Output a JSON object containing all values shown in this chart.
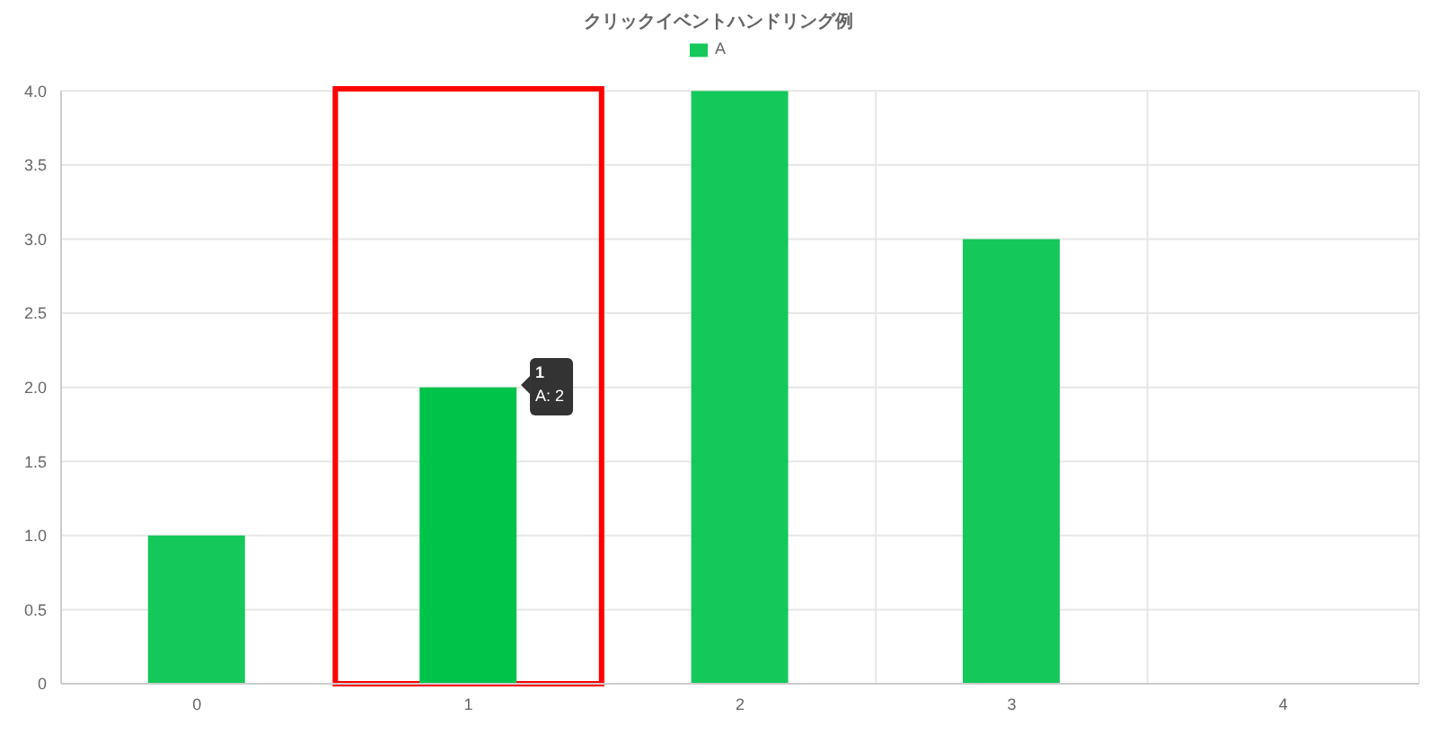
{
  "chart_data": {
    "type": "bar",
    "title": "クリックイベントハンドリング例",
    "categories": [
      "0",
      "1",
      "2",
      "3",
      "4"
    ],
    "series": [
      {
        "name": "A",
        "color": "#14c85a",
        "colors": [
          "#14c85a",
          "#00c44a",
          "#14c85a",
          "#14c85a",
          "#14c85a"
        ],
        "values": [
          1,
          2,
          4,
          3,
          0
        ]
      }
    ],
    "ylim": [
      0,
      4
    ],
    "yticks": [
      0,
      0.5,
      {
        "value": 1,
        "label": "1.0"
      },
      1.5,
      {
        "value": 2,
        "label": "2.0"
      },
      2.5,
      {
        "value": 3,
        "label": "3.0"
      },
      3.5,
      {
        "value": 4,
        "label": "4.0"
      }
    ],
    "grid": true,
    "legend": "top",
    "annotations": [
      "1",
      "A: 2"
    ]
  }
}
